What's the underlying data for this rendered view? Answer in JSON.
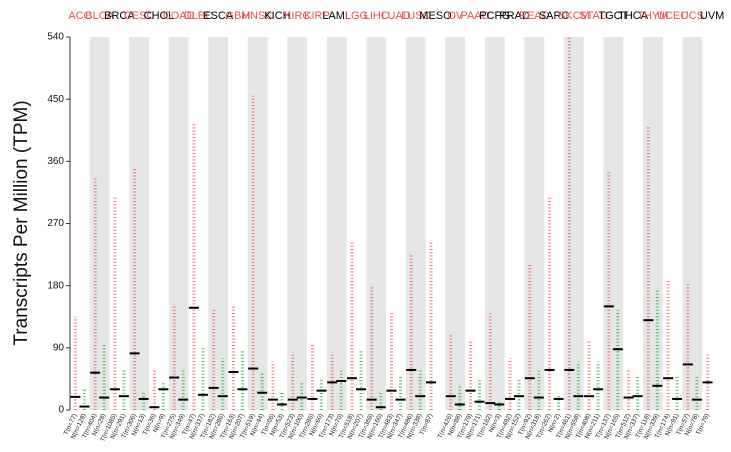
{
  "chart_data": {
    "type": "dotplot",
    "y_label": "Transcripts Per Million (TPM)",
    "ylim": [
      0,
      540
    ],
    "yticks": [
      0,
      90,
      180,
      270,
      360,
      450,
      540
    ],
    "tumor_color": "#f0524e",
    "normal_color": "#1aaa2a",
    "median_color": "#000000",
    "groups": [
      {
        "name": "ACC",
        "color": "#f0524e",
        "tumor": {
          "label": "T(n=77)",
          "median": 19,
          "max": 135
        },
        "normal": {
          "label": "N(n=128)",
          "median": 5,
          "max": 30
        }
      },
      {
        "name": "BLCA",
        "color": "#f0524e",
        "tumor": {
          "label": "T(n=404)",
          "median": 54,
          "max": 335
        },
        "normal": {
          "label": "N(n=28)",
          "median": 18,
          "max": 95
        }
      },
      {
        "name": "BRCA",
        "color": "#000000",
        "tumor": {
          "label": "T(n=1085)",
          "median": 30,
          "max": 310
        },
        "normal": {
          "label": "N(n=291)",
          "median": 20,
          "max": 60
        }
      },
      {
        "name": "CESC",
        "color": "#f0524e",
        "tumor": {
          "label": "T(n=306)",
          "median": 82,
          "max": 350
        },
        "normal": {
          "label": "N(n=13)",
          "median": 16,
          "max": 25
        }
      },
      {
        "name": "CHOL",
        "color": "#000000",
        "tumor": {
          "label": "T(n=36)",
          "median": 4,
          "max": 60
        },
        "normal": {
          "label": "N(n=9)",
          "median": 30,
          "max": 40
        }
      },
      {
        "name": "COAD",
        "color": "#f0524e",
        "tumor": {
          "label": "T(n=275)",
          "median": 47,
          "max": 150
        },
        "normal": {
          "label": "N(n=349)",
          "median": 15,
          "max": 60
        }
      },
      {
        "name": "DLBC",
        "color": "#f0524e",
        "tumor": {
          "label": "T(n=47)",
          "median": 148,
          "max": 415
        },
        "normal": {
          "label": "N(n=337)",
          "median": 22,
          "max": 90
        }
      },
      {
        "name": "ESCA",
        "color": "#000000",
        "tumor": {
          "label": "T(n=182)",
          "median": 32,
          "max": 145
        },
        "normal": {
          "label": "N(n=286)",
          "median": 20,
          "max": 75
        }
      },
      {
        "name": "GBM",
        "color": "#f0524e",
        "tumor": {
          "label": "T(n=163)",
          "median": 55,
          "max": 150
        },
        "normal": {
          "label": "N(n=207)",
          "median": 30,
          "max": 85
        }
      },
      {
        "name": "HNSC",
        "color": "#f0524e",
        "tumor": {
          "label": "T(n=519)",
          "median": 60,
          "max": 455
        },
        "normal": {
          "label": "N(n=44)",
          "median": 25,
          "max": 55
        }
      },
      {
        "name": "KICH",
        "color": "#000000",
        "tumor": {
          "label": "T(n=66)",
          "median": 15,
          "max": 70
        },
        "normal": {
          "label": "N(n=53)",
          "median": 8,
          "max": 25
        }
      },
      {
        "name": "KIRC",
        "color": "#f0524e",
        "tumor": {
          "label": "T(n=523)",
          "median": 15,
          "max": 80
        },
        "normal": {
          "label": "N(n=100)",
          "median": 18,
          "max": 40
        }
      },
      {
        "name": "KIRP",
        "color": "#f0524e",
        "tumor": {
          "label": "T(n=286)",
          "median": 16,
          "max": 95
        },
        "normal": {
          "label": "N(n=60)",
          "median": 28,
          "max": 45
        }
      },
      {
        "name": "LAML",
        "color": "#000000",
        "tumor": {
          "label": "T(n=173)",
          "median": 40,
          "max": 80
        },
        "normal": {
          "label": "N(n=70)",
          "median": 42,
          "max": 60
        }
      },
      {
        "name": "LGG",
        "color": "#f0524e",
        "tumor": {
          "label": "T(n=518)",
          "median": 46,
          "max": 245
        },
        "normal": {
          "label": "N(n=207)",
          "median": 30,
          "max": 85
        }
      },
      {
        "name": "LIHC",
        "color": "#f0524e",
        "tumor": {
          "label": "T(n=369)",
          "median": 15,
          "max": 180
        },
        "normal": {
          "label": "N(n=160)",
          "median": 4,
          "max": 25
        }
      },
      {
        "name": "LUAD",
        "color": "#f0524e",
        "tumor": {
          "label": "T(n=483)",
          "median": 28,
          "max": 140
        },
        "normal": {
          "label": "N(n=347)",
          "median": 15,
          "max": 50
        }
      },
      {
        "name": "LUSC",
        "color": "#f0524e",
        "tumor": {
          "label": "T(n=486)",
          "median": 58,
          "max": 225
        },
        "normal": {
          "label": "N(n=338)",
          "median": 20,
          "max": 60
        }
      },
      {
        "name": "MESO",
        "color": "#000000",
        "tumor": {
          "label": "T(n=87)",
          "median": 40,
          "max": 245
        },
        "normal": null
      },
      {
        "name": "OV",
        "color": "#f0524e",
        "tumor": {
          "label": "T(n=426)",
          "median": 20,
          "max": 110
        },
        "normal": {
          "label": "N(n=88)",
          "median": 8,
          "max": 35
        }
      },
      {
        "name": "PAAD",
        "color": "#f0524e",
        "tumor": {
          "label": "T(n=179)",
          "median": 28,
          "max": 100
        },
        "normal": {
          "label": "N(n=171)",
          "median": 12,
          "max": 45
        }
      },
      {
        "name": "PCPG",
        "color": "#000000",
        "tumor": {
          "label": "T(n=182)",
          "median": 10,
          "max": 140
        },
        "normal": {
          "label": "N(n=3)",
          "median": 8,
          "max": 12
        }
      },
      {
        "name": "PRAD",
        "color": "#000000",
        "tumor": {
          "label": "T(n=492)",
          "median": 16,
          "max": 75
        },
        "normal": {
          "label": "N(n=152)",
          "median": 20,
          "max": 45
        }
      },
      {
        "name": "READ",
        "color": "#f0524e",
        "tumor": {
          "label": "T(n=92)",
          "median": 46,
          "max": 210
        },
        "normal": {
          "label": "N(n=318)",
          "median": 18,
          "max": 60
        }
      },
      {
        "name": "SARC",
        "color": "#000000",
        "tumor": {
          "label": "T(n=262)",
          "median": 58,
          "max": 310
        },
        "normal": {
          "label": "N(n=2)",
          "median": 16,
          "max": 20
        }
      },
      {
        "name": "SKCM",
        "color": "#f0524e",
        "tumor": {
          "label": "T(n=461)",
          "median": 58,
          "max": 540
        },
        "normal": {
          "label": "N(n=558)",
          "median": 20,
          "max": 70
        }
      },
      {
        "name": "STAD",
        "color": "#f0524e",
        "tumor": {
          "label": "T(n=408)",
          "median": 20,
          "max": 100
        },
        "normal": {
          "label": "N(n=211)",
          "median": 30,
          "max": 70
        }
      },
      {
        "name": "TGCT",
        "color": "#000000",
        "tumor": {
          "label": "T(n=137)",
          "median": 150,
          "max": 345
        },
        "normal": {
          "label": "N(n=165)",
          "median": 88,
          "max": 145
        }
      },
      {
        "name": "THCA",
        "color": "#000000",
        "tumor": {
          "label": "T(n=512)",
          "median": 18,
          "max": 60
        },
        "normal": {
          "label": "N(n=337)",
          "median": 20,
          "max": 50
        }
      },
      {
        "name": "THYM",
        "color": "#f0524e",
        "tumor": {
          "label": "T(n=118)",
          "median": 130,
          "max": 410
        },
        "normal": {
          "label": "N(n=339)",
          "median": 35,
          "max": 175
        }
      },
      {
        "name": "UCEC",
        "color": "#f0524e",
        "tumor": {
          "label": "T(n=174)",
          "median": 46,
          "max": 190
        },
        "normal": {
          "label": "N(n=91)",
          "median": 16,
          "max": 50
        }
      },
      {
        "name": "UCS",
        "color": "#f0524e",
        "tumor": {
          "label": "T(n=57)",
          "median": 66,
          "max": 185
        },
        "normal": {
          "label": "N(n=78)",
          "median": 15,
          "max": 50
        }
      },
      {
        "name": "UVM",
        "color": "#000000",
        "tumor": {
          "label": "T(n=79)",
          "median": 40,
          "max": 80
        },
        "normal": null
      }
    ]
  }
}
